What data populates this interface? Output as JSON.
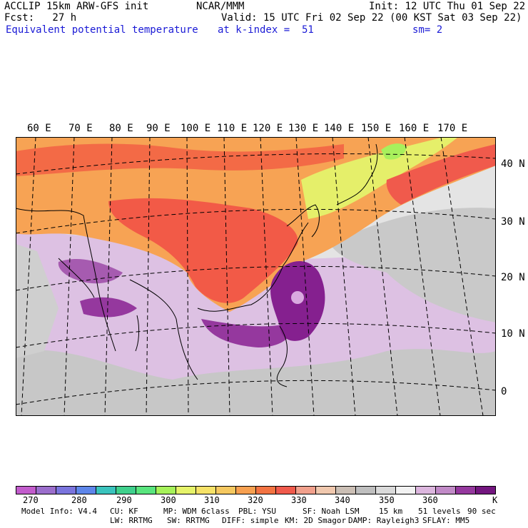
{
  "header": {
    "model": "ACCLIP 15km ARW-GFS init",
    "org": "NCAR/MMM",
    "init": "Init: 12 UTC Thu 01 Sep 22",
    "fcst": "Fcst:   27 h",
    "valid": "Valid: 15 UTC Fri 02 Sep 22 (00 KST Sat 03 Sep 22)",
    "field": "Equivalent potential temperature",
    "level": "at k-index =  51",
    "smooth": "sm= 2"
  },
  "lon_labels": [
    "60 E",
    "70 E",
    "80 E",
    "90 E",
    "100 E",
    "110 E",
    "120 E",
    "130 E",
    "140 E",
    "150 E",
    "160 E",
    "170 E"
  ],
  "lat_labels": [
    "40 N",
    "30 N",
    "20 N",
    "10 N",
    "0"
  ],
  "colorbar": {
    "colors": [
      "#c25ccc",
      "#9b6ecc",
      "#7a74dd",
      "#5e86ea",
      "#3ac3bd",
      "#3fd08c",
      "#59e57e",
      "#a6f25a",
      "#e6f36a",
      "#f6e268",
      "#f5c860",
      "#f7a050",
      "#f37342",
      "#f05a4c",
      "#f1a08c",
      "#f0c8ae",
      "#cbbfb5",
      "#bfbfbf",
      "#dadada",
      "#f2f2f2",
      "#dcb6de",
      "#c18ac7",
      "#95389e",
      "#73167f"
    ],
    "ticks": [
      "270",
      "280",
      "290",
      "300",
      "310",
      "320",
      "330",
      "340",
      "350",
      "360"
    ],
    "unit": "K"
  },
  "footer": {
    "line1": [
      "Model Info: V4.4",
      "CU: KF",
      "MP: WDM 6class",
      "PBL: YSU",
      "SF: Noah LSM",
      "15 km",
      "51 levels",
      "90 sec"
    ],
    "line2": [
      "LW: RRTMG",
      "SW: RRTMG",
      "DIFF: simple",
      "KM: 2D Smagor",
      "DAMP: Rayleigh3",
      "SFLAY: MM5"
    ]
  }
}
